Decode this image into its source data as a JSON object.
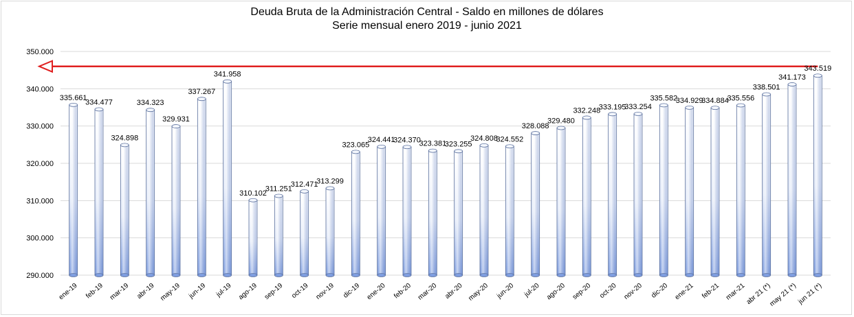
{
  "chart_data": {
    "type": "bar",
    "title": "Deuda Bruta de la Administración Central - Saldo en millones de dólares",
    "subtitle": "Serie mensual enero 2019 - junio 2021",
    "xlabel": "",
    "ylabel": "",
    "ylim": [
      290000,
      350000
    ],
    "yticks": [
      290000,
      300000,
      310000,
      320000,
      330000,
      340000,
      350000
    ],
    "ytick_labels": [
      "290.000",
      "300.000",
      "310.000",
      "320.000",
      "330.000",
      "340.000",
      "350.000"
    ],
    "grid": true,
    "legend": "none",
    "categories": [
      "ene-19",
      "feb-19",
      "mar-19",
      "abr-19",
      "may-19",
      "jun-19",
      "jul-19",
      "ago-19",
      "sep-19",
      "oct-19",
      "nov-19",
      "dic-19",
      "ene-20",
      "feb-20",
      "mar-20",
      "abr-20",
      "may-20",
      "jun-20",
      "jul-20",
      "ago-20",
      "sep-20",
      "oct-20",
      "nov-20",
      "dic-20",
      "ene-21",
      "feb-21",
      "mar-21",
      "abr 21 (*)",
      "may 21 (*)",
      "jun 21 (*)"
    ],
    "values": [
      335661,
      334477,
      324898,
      334323,
      329931,
      337267,
      341958,
      310102,
      311251,
      312471,
      313299,
      323065,
      324441,
      324370,
      323381,
      323255,
      324808,
      324552,
      328088,
      329480,
      332248,
      333195,
      333254,
      335582,
      334929,
      334884,
      335556,
      338501,
      341173,
      343519
    ],
    "value_labels": [
      "335.661",
      "334.477",
      "324.898",
      "334.323",
      "329.931",
      "337.267",
      "341.958",
      "310.102",
      "311.251",
      "312.471",
      "313.299",
      "323.065",
      "324.441",
      "324.370",
      "323.381",
      "323.255",
      "324.808",
      "324.552",
      "328.088",
      "329.480",
      "332.248",
      "333.195",
      "333.254",
      "335.582",
      "334.929",
      "334.884",
      "335.556",
      "338.501",
      "341.173",
      "343.519"
    ],
    "annotations": [
      {
        "type": "arrow",
        "value": 346000,
        "direction": "left",
        "color": "#e02020"
      }
    ],
    "colors": {
      "bar_top": "#ffffff",
      "bar_bottom": "#7f9ee0",
      "bar_edge": "#5a6f9c",
      "grid": "#d9d9d9",
      "arrow": "#e02020"
    }
  }
}
